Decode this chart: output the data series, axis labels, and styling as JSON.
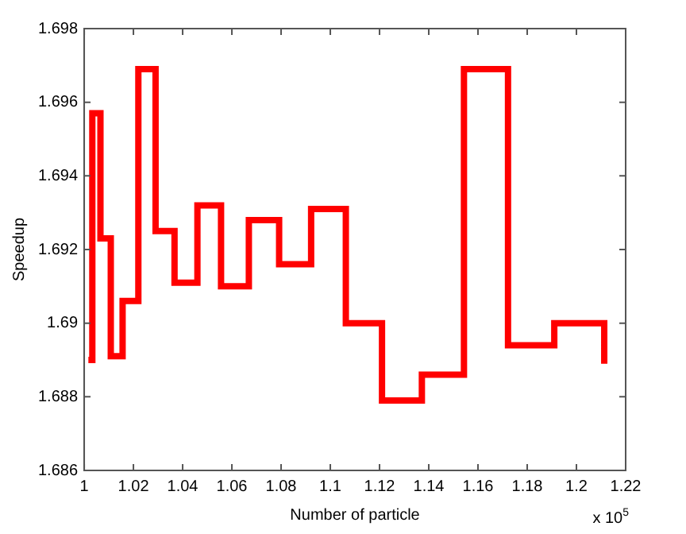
{
  "chart_data": {
    "type": "step",
    "xlabel": "Number of particle",
    "ylabel": "Speedup",
    "annotations": [
      "x 10$^{5}$"
    ],
    "x": [
      1.0017,
      1.0033,
      1.0066,
      1.0108,
      1.0156,
      1.022,
      1.029,
      1.0367,
      1.046,
      1.0556,
      1.0669,
      1.0792,
      1.0922,
      1.1063,
      1.121,
      1.1372,
      1.1543,
      1.1722,
      1.191,
      1.2113
    ],
    "series": [
      {
        "color": "#ff0000",
        "values": [
          1.689,
          1.6957,
          1.6923,
          1.6891,
          1.6906,
          1.6969,
          1.6925,
          1.6911,
          1.6932,
          1.691,
          1.6928,
          1.6916,
          1.6931,
          1.69,
          1.6879,
          1.6886,
          1.6969,
          1.6894,
          1.69,
          1.6889
        ]
      }
    ],
    "xlim": [
      1,
      1.22
    ],
    "xticks": [
      1,
      1.02,
      1.04,
      1.06,
      1.08,
      1.1,
      1.12,
      1.14,
      1.16,
      1.18,
      1.2,
      1.22
    ],
    "ylim": [
      1.686,
      1.698
    ],
    "yticks": [
      1.686,
      1.688,
      1.69,
      1.692,
      1.694,
      1.696,
      1.698
    ],
    "grid": false,
    "legend": false,
    "marker": "none",
    "line_style": "solid"
  }
}
